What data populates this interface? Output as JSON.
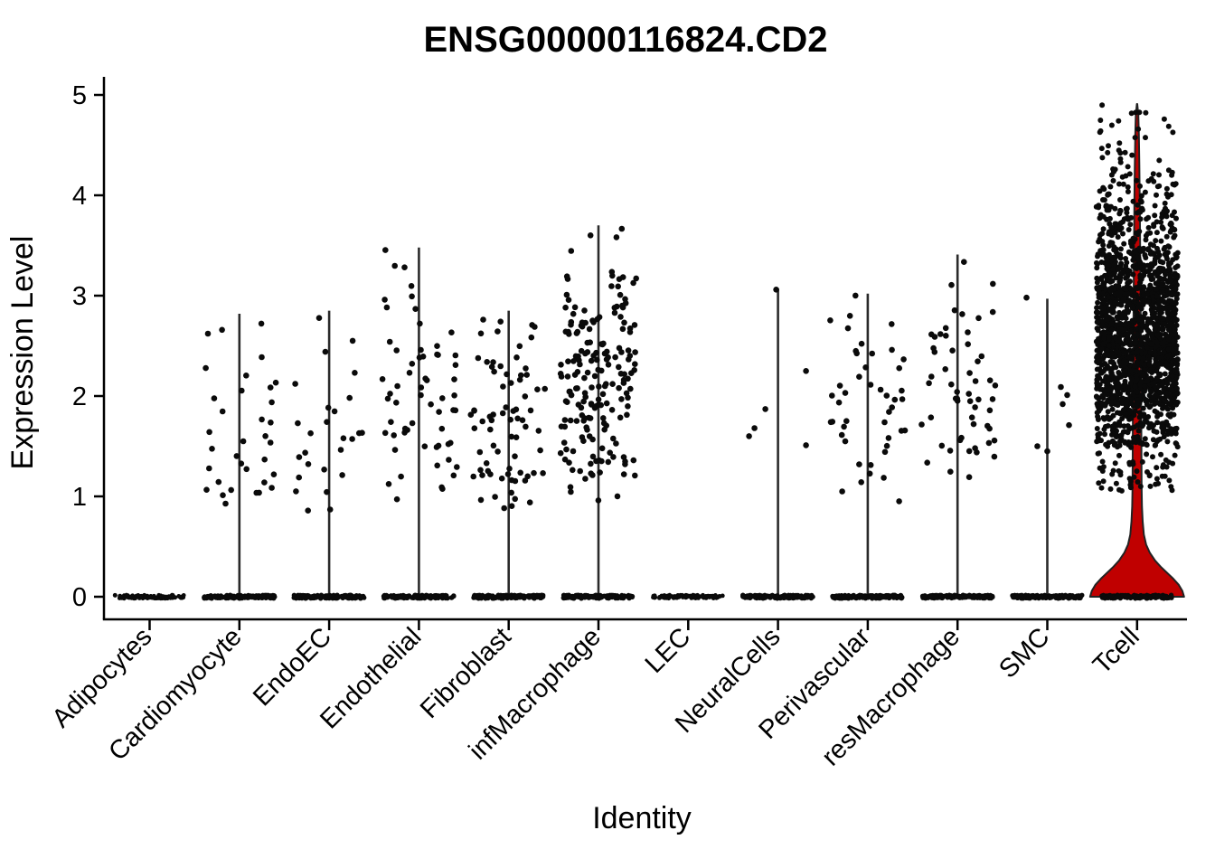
{
  "chart_data": {
    "type": "violin-jitter",
    "title": "ENSG00000116824.CD2",
    "xlabel": "Identity",
    "ylabel": "Expression Level",
    "ylim": [
      0,
      5
    ],
    "y_tick_labels": [
      "0",
      "1",
      "2",
      "3",
      "4",
      "5"
    ],
    "grid": false,
    "legend": "none",
    "colors": {
      "background": "#ffffff",
      "axis": "#000000",
      "stem": "#2a2a2a",
      "point": "#0a0a0a",
      "violin_fill": "#c00000",
      "violin_stroke": "#222222"
    },
    "categories": [
      {
        "label": "Adipocytes",
        "stem_max": 0,
        "zero_band": "light",
        "bands": []
      },
      {
        "label": "Cardiomyocyte",
        "stem_max": 2.82,
        "zero_band": "dense",
        "bands": [
          [
            0.85,
            1.15,
            9
          ],
          [
            1.15,
            1.6,
            9
          ],
          [
            1.6,
            2.1,
            9
          ],
          [
            2.1,
            2.5,
            4
          ],
          [
            2.5,
            2.82,
            3
          ]
        ]
      },
      {
        "label": "EndoEC",
        "stem_max": 2.85,
        "zero_band": "dense",
        "bands": [
          [
            0.8,
            1.2,
            5
          ],
          [
            1.2,
            1.6,
            8
          ],
          [
            1.6,
            2.0,
            8
          ],
          [
            2.0,
            2.5,
            3
          ],
          [
            2.5,
            2.85,
            2
          ]
        ]
      },
      {
        "label": "Endothelial",
        "stem_max": 3.48,
        "zero_band": "dense",
        "bands": [
          [
            0.95,
            1.4,
            9
          ],
          [
            1.4,
            1.8,
            14
          ],
          [
            1.8,
            2.2,
            16
          ],
          [
            2.2,
            2.6,
            12
          ],
          [
            2.6,
            3.0,
            6
          ],
          [
            3.0,
            3.48,
            4
          ]
        ]
      },
      {
        "label": "Fibroblast",
        "stem_max": 2.85,
        "zero_band": "dense",
        "bands": [
          [
            0.85,
            1.2,
            12
          ],
          [
            1.2,
            1.6,
            18
          ],
          [
            1.6,
            2.0,
            20
          ],
          [
            2.0,
            2.4,
            16
          ],
          [
            2.4,
            2.85,
            8
          ]
        ]
      },
      {
        "label": "infMacrophage",
        "stem_max": 3.7,
        "zero_band": "dense",
        "bands": [
          [
            0.95,
            1.3,
            12
          ],
          [
            1.3,
            1.7,
            30
          ],
          [
            1.7,
            2.1,
            45
          ],
          [
            2.1,
            2.5,
            48
          ],
          [
            2.5,
            2.9,
            35
          ],
          [
            2.9,
            3.2,
            15
          ],
          [
            3.2,
            3.7,
            5
          ]
        ]
      },
      {
        "label": "LEC",
        "stem_max": 0,
        "zero_band": "light",
        "bands": []
      },
      {
        "label": "NeuralCells",
        "stem_max": 3.07,
        "zero_band": "dense",
        "points": [
          [
            3.06,
            -2
          ],
          [
            2.25,
            31
          ],
          [
            1.87,
            -14
          ],
          [
            1.68,
            -26
          ],
          [
            1.6,
            -32
          ],
          [
            1.51,
            31
          ]
        ]
      },
      {
        "label": "Perivascular",
        "stem_max": 3.02,
        "zero_band": "dense",
        "bands": [
          [
            0.95,
            1.3,
            5
          ],
          [
            1.3,
            1.7,
            10
          ],
          [
            1.7,
            2.1,
            14
          ],
          [
            2.1,
            2.5,
            10
          ],
          [
            2.5,
            3.02,
            6
          ]
        ]
      },
      {
        "label": "resMacrophage",
        "stem_max": 3.41,
        "zero_band": "dense",
        "bands": [
          [
            1.14,
            1.5,
            8
          ],
          [
            1.5,
            1.9,
            13
          ],
          [
            1.9,
            2.3,
            16
          ],
          [
            2.3,
            2.7,
            12
          ],
          [
            2.7,
            3.0,
            4
          ],
          [
            3.0,
            3.41,
            3
          ]
        ]
      },
      {
        "label": "SMC",
        "stem_max": 2.97,
        "zero_band": "dense",
        "points": [
          [
            2.98,
            -23
          ],
          [
            2.09,
            15
          ],
          [
            2.01,
            22
          ],
          [
            1.92,
            17
          ],
          [
            1.71,
            24
          ],
          [
            1.5,
            -11
          ],
          [
            1.45,
            0
          ]
        ]
      },
      {
        "label": "Tcell",
        "stem_max": 4.91,
        "zero_band": "dense",
        "violin": true,
        "bands": [
          [
            1.05,
            1.5,
            60
          ],
          [
            1.5,
            1.9,
            170
          ],
          [
            1.9,
            2.3,
            380
          ],
          [
            2.3,
            2.7,
            430
          ],
          [
            2.7,
            3.1,
            380
          ],
          [
            3.1,
            3.5,
            230
          ],
          [
            3.5,
            3.9,
            110
          ],
          [
            3.9,
            4.3,
            50
          ],
          [
            4.3,
            4.7,
            20
          ],
          [
            4.7,
            4.91,
            8
          ]
        ]
      }
    ],
    "tcell_violin_half_width_profile": [
      [
        0,
        52
      ],
      [
        0.06,
        50
      ],
      [
        0.12,
        46
      ],
      [
        0.18,
        40
      ],
      [
        0.24,
        33
      ],
      [
        0.3,
        26
      ],
      [
        0.36,
        20
      ],
      [
        0.44,
        14
      ],
      [
        0.52,
        10
      ],
      [
        0.62,
        7.5
      ],
      [
        0.75,
        6.2
      ],
      [
        0.9,
        5.4
      ],
      [
        1.1,
        5.0
      ],
      [
        1.5,
        4.8
      ],
      [
        2.0,
        4.5
      ],
      [
        2.5,
        4.2
      ],
      [
        3.0,
        3.8
      ],
      [
        3.5,
        3.4
      ],
      [
        4.0,
        2.9
      ],
      [
        4.3,
        2.5
      ],
      [
        4.6,
        2.0
      ],
      [
        4.8,
        1.4
      ],
      [
        4.91,
        0.2
      ]
    ]
  }
}
